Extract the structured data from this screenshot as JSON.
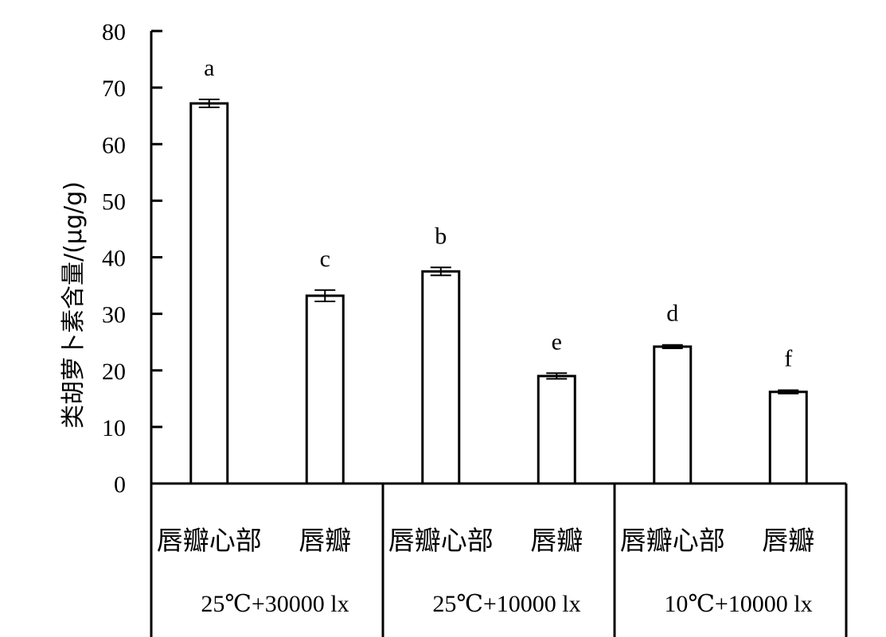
{
  "chart_data": {
    "type": "bar",
    "title": "",
    "ylabel": "类胡萝卜素含量/(μg/g)",
    "xlabel": "",
    "ylim": [
      0,
      80
    ],
    "yticks": [
      0,
      10,
      20,
      30,
      40,
      50,
      60,
      70,
      80
    ],
    "ytick_labels": [
      "0",
      "10",
      "20",
      "30",
      "40",
      "50",
      "60",
      "70",
      "80"
    ],
    "grid": false,
    "legend": "none",
    "categories": [
      "唇瓣心部",
      "唇瓣",
      "唇瓣心部",
      "唇瓣",
      "唇瓣心部",
      "唇瓣"
    ],
    "groups": [
      {
        "label": "25℃+30000 lx",
        "categories": [
          "唇瓣心部",
          "唇瓣"
        ]
      },
      {
        "label": "25℃+10000 lx",
        "categories": [
          "唇瓣心部",
          "唇瓣"
        ]
      },
      {
        "label": "10℃+10000 lx",
        "categories": [
          "唇瓣心部",
          "唇瓣"
        ]
      }
    ],
    "values": [
      67.2,
      33.2,
      37.5,
      19.0,
      24.2,
      16.2
    ],
    "errors": [
      0.7,
      1.0,
      0.7,
      0.5,
      0.3,
      0.3
    ],
    "significance_letters": [
      "a",
      "c",
      "b",
      "e",
      "d",
      "f"
    ],
    "colors": {
      "bar_fill": "#ffffff",
      "bar_stroke": "#000000",
      "axis": "#000000"
    }
  }
}
